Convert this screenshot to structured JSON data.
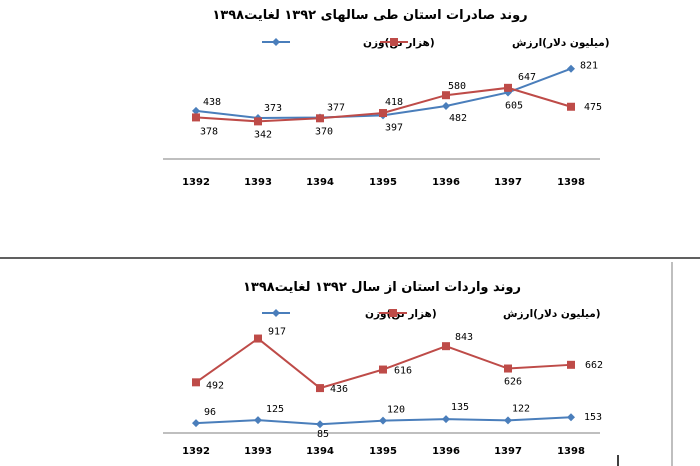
{
  "colors": {
    "weight": "#4a7ebb",
    "value": "#be4b48",
    "axis": "#7f7f7f",
    "divider": "#000000"
  },
  "chart_data": [
    {
      "type": "line",
      "title": "روند صادرات استان طی سالهای ۱۳۹۲ لغایت۱۳۹۸",
      "categories": [
        "1392",
        "1393",
        "1394",
        "1395",
        "1396",
        "1397",
        "1398"
      ],
      "series": [
        {
          "key": "weight",
          "name": "(هزار تن)وزن",
          "marker": "diamond",
          "values": [
            438,
            373,
            377,
            397,
            482,
            605,
            821
          ]
        },
        {
          "key": "value",
          "name": "(میلیون دلار)ارزش",
          "marker": "square",
          "values": [
            378,
            342,
            370,
            418,
            580,
            647,
            475
          ]
        }
      ],
      "ylim": [
        0,
        900
      ],
      "grid": false,
      "legend": "top"
    },
    {
      "type": "line",
      "title": "روند واردات استان از سال ۱۳۹۲ لغایت۱۳۹۸",
      "categories": [
        "1392",
        "1393",
        "1394",
        "1395",
        "1396",
        "1397",
        "1398"
      ],
      "series": [
        {
          "key": "weight",
          "name": "(هزار تن)وزن",
          "marker": "diamond",
          "values": [
            96,
            125,
            85,
            120,
            135,
            122,
            153
          ]
        },
        {
          "key": "value",
          "name": "(میلیون دلار)ارزش",
          "marker": "square",
          "values": [
            492,
            917,
            436,
            616,
            843,
            626,
            662
          ]
        }
      ],
      "ylim": [
        0,
        1000
      ],
      "grid": false,
      "legend": "top"
    }
  ]
}
